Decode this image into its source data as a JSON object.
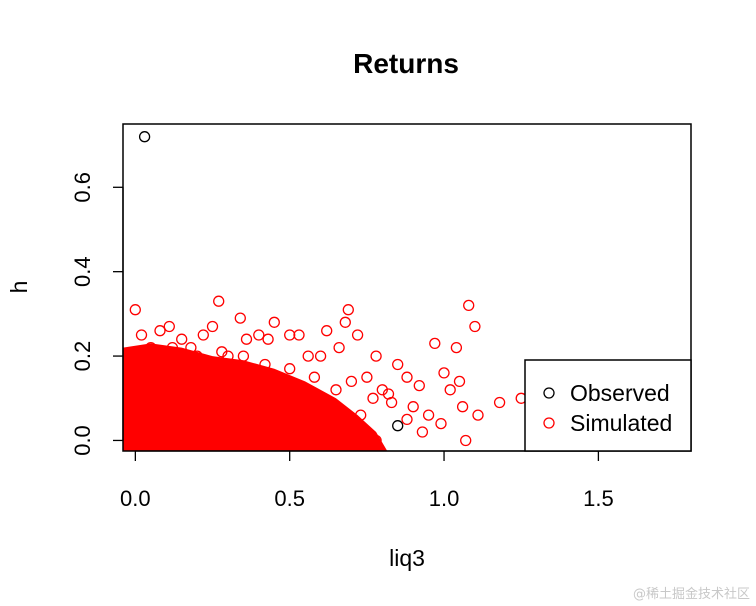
{
  "chart_data": {
    "type": "scatter",
    "title": "Returns",
    "xlabel": "liq3",
    "ylabel": "h",
    "xlim": [
      -0.04,
      1.8
    ],
    "ylim": [
      -0.025,
      0.75
    ],
    "x_ticks": [
      0.0,
      0.5,
      1.0,
      1.5
    ],
    "x_tick_labels": [
      "0.0",
      "0.5",
      "1.0",
      "1.5"
    ],
    "y_ticks": [
      0.0,
      0.2,
      0.4,
      0.6
    ],
    "y_tick_labels": [
      "0.0",
      "0.2",
      "0.4",
      "0.6"
    ],
    "grid": false,
    "legend_position": "bottom-right",
    "marker": "open-circle",
    "series": [
      {
        "name": "Observed",
        "color": "#000000",
        "points": [
          [
            0.03,
            0.72
          ],
          [
            0.85,
            0.035
          ]
        ]
      },
      {
        "name": "Simulated",
        "color": "#ff0000",
        "points": [
          [
            0.0,
            0.31
          ],
          [
            0.02,
            0.25
          ],
          [
            0.05,
            0.22
          ],
          [
            0.08,
            0.26
          ],
          [
            0.11,
            0.27
          ],
          [
            0.15,
            0.24
          ],
          [
            0.18,
            0.22
          ],
          [
            0.22,
            0.25
          ],
          [
            0.25,
            0.27
          ],
          [
            0.27,
            0.33
          ],
          [
            0.3,
            0.2
          ],
          [
            0.34,
            0.29
          ],
          [
            0.36,
            0.24
          ],
          [
            0.4,
            0.25
          ],
          [
            0.43,
            0.24
          ],
          [
            0.45,
            0.28
          ],
          [
            0.5,
            0.25
          ],
          [
            0.53,
            0.25
          ],
          [
            0.56,
            0.2
          ],
          [
            0.6,
            0.2
          ],
          [
            0.62,
            0.26
          ],
          [
            0.66,
            0.22
          ],
          [
            0.69,
            0.31
          ],
          [
            0.68,
            0.28
          ],
          [
            0.72,
            0.25
          ],
          [
            0.7,
            0.14
          ],
          [
            0.75,
            0.15
          ],
          [
            0.78,
            0.2
          ],
          [
            0.8,
            0.12
          ],
          [
            0.82,
            0.11
          ],
          [
            0.85,
            0.18
          ],
          [
            0.88,
            0.15
          ],
          [
            0.9,
            0.08
          ],
          [
            0.92,
            0.13
          ],
          [
            0.95,
            0.06
          ],
          [
            0.97,
            0.23
          ],
          [
            0.99,
            0.04
          ],
          [
            1.0,
            0.16
          ],
          [
            1.02,
            0.12
          ],
          [
            1.04,
            0.22
          ],
          [
            1.06,
            0.08
          ],
          [
            1.08,
            0.32
          ],
          [
            1.1,
            0.27
          ],
          [
            1.11,
            0.06
          ],
          [
            1.07,
            0.0
          ],
          [
            1.05,
            0.14
          ],
          [
            1.18,
            0.09
          ],
          [
            1.25,
            0.1
          ],
          [
            0.93,
            0.02
          ],
          [
            0.88,
            0.05
          ],
          [
            0.83,
            0.09
          ],
          [
            0.77,
            0.1
          ],
          [
            0.73,
            0.06
          ],
          [
            0.65,
            0.12
          ],
          [
            0.58,
            0.15
          ],
          [
            0.5,
            0.17
          ],
          [
            0.42,
            0.18
          ],
          [
            0.35,
            0.2
          ],
          [
            0.28,
            0.21
          ],
          [
            0.2,
            0.2
          ],
          [
            0.12,
            0.22
          ],
          [
            0.06,
            0.2
          ],
          [
            0.03,
            0.18
          ],
          [
            0.01,
            0.05
          ],
          [
            0.04,
            0.0
          ],
          [
            0.1,
            0.02
          ],
          [
            0.18,
            0.01
          ],
          [
            0.26,
            0.0
          ],
          [
            0.38,
            0.01
          ],
          [
            0.55,
            0.0
          ],
          [
            0.68,
            0.01
          ],
          [
            0.78,
            0.0
          ]
        ]
      }
    ]
  }
}
